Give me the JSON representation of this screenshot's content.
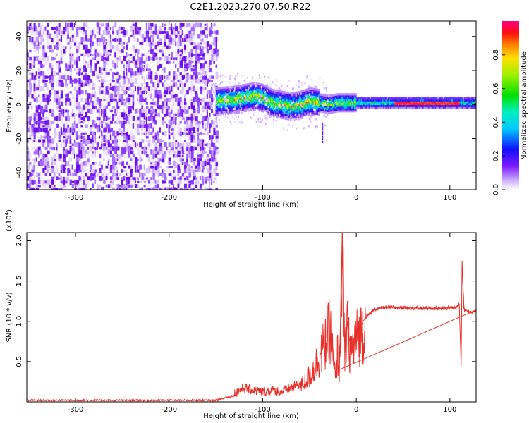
{
  "title": "C2E1.2023.270.07.50.R22",
  "chart_data": [
    {
      "type": "heatmap",
      "xlabel": "Height of straight line (km)",
      "ylabel": "Frequency (Hz)",
      "xlim": [
        -352,
        128
      ],
      "ylim": [
        -50,
        49
      ],
      "xticks": [
        -300,
        -200,
        -100,
        0,
        100
      ],
      "yticks": [
        -40,
        -20,
        0,
        20,
        40
      ],
      "colorbar": {
        "label": "Normalized spectral amplitude",
        "range": [
          0.0,
          1.0
        ],
        "ticks": [
          "0.0",
          "0.2",
          "0.4",
          "0.6",
          "0.8"
        ]
      },
      "description_series": {
        "noise_region_x": [
          -352,
          -150
        ],
        "signal_center_hz": [
          [
            -150,
            2
          ],
          [
            -130,
            3
          ],
          [
            -110,
            5
          ],
          [
            -100,
            4
          ],
          [
            -90,
            1
          ],
          [
            -80,
            0
          ],
          [
            -70,
            -1
          ],
          [
            -60,
            0
          ],
          [
            -50,
            2
          ],
          [
            -40,
            1
          ],
          [
            -30,
            0
          ],
          [
            -20,
            1
          ],
          [
            0,
            1
          ],
          [
            50,
            1
          ],
          [
            100,
            1
          ],
          [
            128,
            1
          ]
        ]
      }
    },
    {
      "type": "line",
      "xlabel": "Height of straight line (km)",
      "ylabel": "SNR (10 * v/v)",
      "y_multiplier": "(x10",
      "y_multiplier_exp": "4",
      "y_multiplier_close": ")",
      "xlim": [
        -352,
        128
      ],
      "ylim": [
        0,
        2.1
      ],
      "xticks": [
        -300,
        -200,
        -100,
        0,
        100
      ],
      "yticks": [
        "0.5",
        "1.0",
        "1.5",
        "2.0"
      ],
      "ytick_values": [
        0.5,
        1.0,
        1.5,
        2.0
      ],
      "series": [
        {
          "color": "#e8302a",
          "x": [
            -352,
            -300,
            -250,
            -200,
            -150,
            -130,
            -120,
            -110,
            -100,
            -90,
            -80,
            -70,
            -60,
            -50,
            -45,
            -40,
            -35,
            -30,
            -28,
            -25,
            -22,
            -20,
            -18,
            -16,
            -15,
            -13,
            -12,
            -10,
            -8,
            -5,
            0,
            5,
            10,
            20,
            30,
            50,
            70,
            90,
            105,
            110,
            112,
            113,
            115,
            120,
            128
          ],
          "y": [
            0.02,
            0.02,
            0.02,
            0.02,
            0.02,
            0.08,
            0.15,
            0.12,
            0.1,
            0.12,
            0.1,
            0.15,
            0.2,
            0.35,
            0.45,
            0.6,
            0.75,
            0.9,
            1.0,
            0.6,
            0.3,
            0.7,
            0.4,
            1.5,
            2.1,
            0.9,
            0.6,
            1.0,
            0.8,
            0.7,
            0.85,
            0.95,
            1.05,
            1.15,
            1.17,
            1.17,
            1.16,
            1.16,
            1.17,
            1.2,
            0.45,
            1.75,
            1.15,
            1.12,
            1.12
          ]
        }
      ]
    }
  ]
}
